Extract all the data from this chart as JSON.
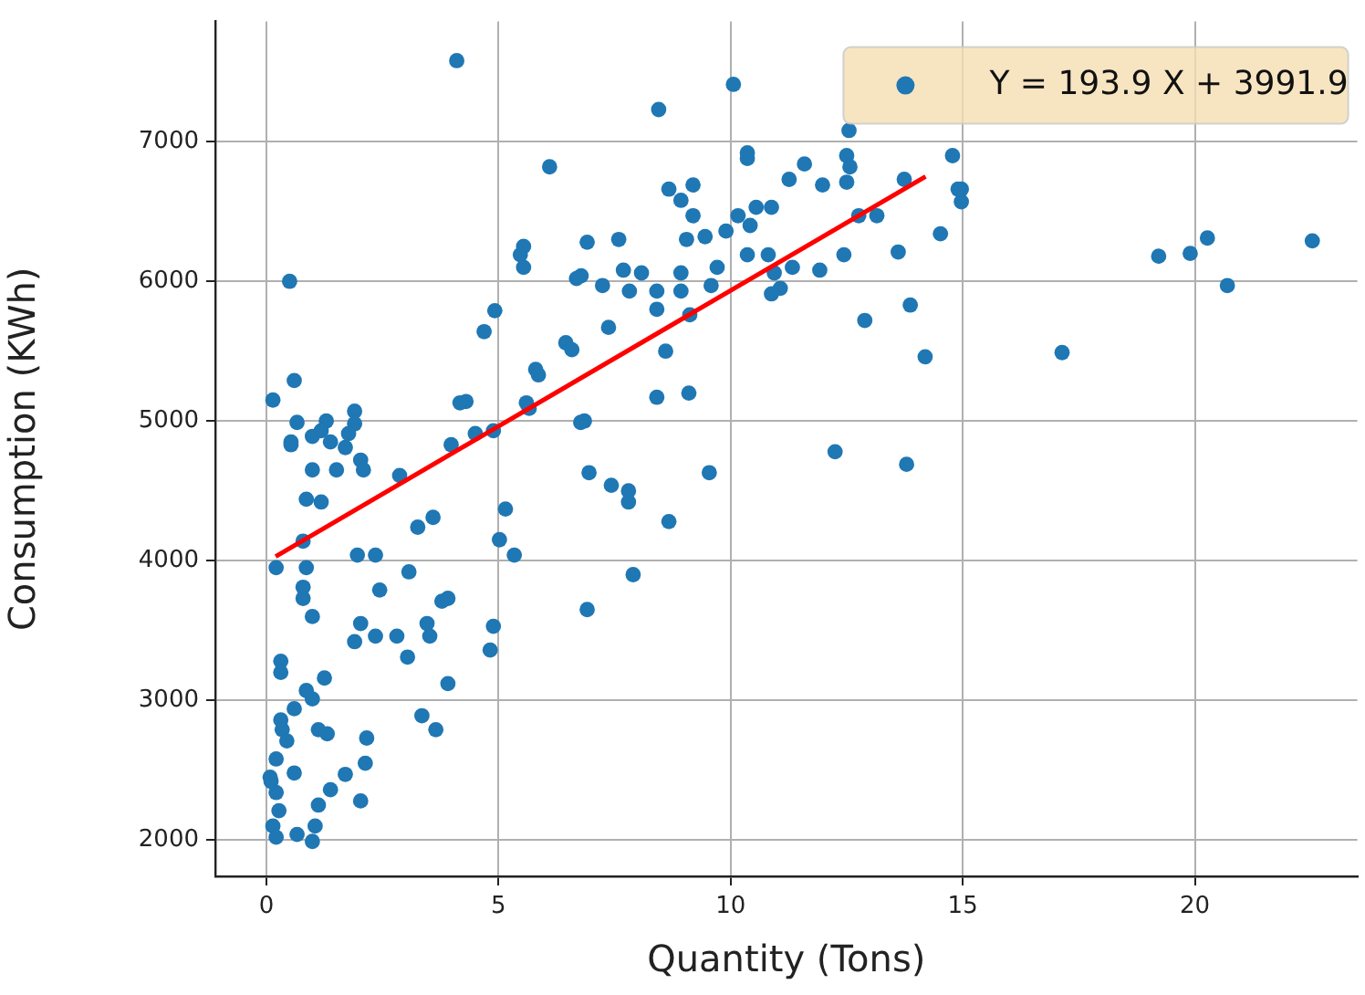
{
  "chart_data": {
    "type": "scatter",
    "xlabel": "Quantity (Tons)",
    "ylabel": "Consumption (KWh)",
    "xlim": [
      -1.1,
      23.5
    ],
    "ylim": [
      1740,
      7860
    ],
    "xticks": [
      0,
      5,
      10,
      15,
      20
    ],
    "yticks": [
      2000,
      3000,
      4000,
      5000,
      6000,
      7000
    ],
    "grid": true,
    "legend": "top right",
    "series": [
      {
        "name": "Y = 193.9 X + 3991.9",
        "marker": "circle",
        "color": "#1f77b4",
        "x": [
          4.1,
          0.5,
          6.1,
          8.45,
          10.06,
          12.55,
          17.14,
          19.22,
          19.9,
          20.27,
          20.7,
          22.53,
          14.97,
          14.97,
          12.25,
          13.79,
          7.9,
          6.91,
          6.95,
          7.43,
          7.8,
          7.8,
          8.67,
          9.54,
          6.91,
          7.59,
          6.78,
          7.24,
          7.69,
          7.82,
          8.08,
          8.41,
          8.41,
          8.93,
          8.93,
          9.12,
          9.71,
          9.58,
          8.6,
          7.37,
          8.41,
          9.1,
          6.85,
          8.67,
          9.19,
          8.93,
          9.19,
          9.05,
          9.45,
          9.9,
          10.16,
          10.42,
          10.55,
          10.88,
          10.36,
          10.36,
          11.26,
          11.59,
          11.98,
          12.5,
          12.5,
          12.57,
          12.76,
          13.15,
          10.36,
          10.81,
          10.94,
          11.07,
          10.88,
          11.33,
          11.92,
          12.44,
          12.89,
          13.61,
          13.87,
          14.19,
          13.74,
          14.52,
          14.78,
          14.9,
          5.54,
          5.47,
          5.54,
          6.68,
          4.92,
          4.69,
          6.45,
          6.58,
          5.8,
          5.86,
          6.77,
          5.6,
          5.66,
          4.3,
          4.17,
          4.89,
          4.5,
          3.98,
          0.6,
          0.14,
          0.66,
          1.29,
          1.9,
          1.9,
          0.53,
          0.53,
          0.99,
          1.38,
          1.7,
          2.03,
          1.51,
          0.99,
          2.09,
          1.18,
          1.77,
          2.87,
          5.15,
          0.86,
          1.18,
          3.59,
          3.26,
          0.79,
          1.96,
          2.35,
          5.02,
          5.34,
          0.21,
          0.86,
          3.07,
          0.79,
          2.44,
          0.79,
          0.99,
          2.03,
          2.35,
          2.81,
          1.9,
          3.46,
          3.52,
          3.78,
          3.91,
          4.89,
          4.82,
          3.04,
          0.31,
          0.31,
          1.25,
          0.86,
          0.99,
          3.91,
          0.6,
          0.31,
          0.34,
          0.44,
          1.12,
          1.31,
          3.35,
          3.65,
          2.16,
          0.21,
          0.08,
          0.6,
          2.13,
          1.7,
          1.38,
          1.12,
          2.03,
          0.21,
          0.27,
          0.14,
          0.21,
          0.66,
          0.99,
          1.05,
          0.1
        ],
        "values": [
          7580,
          6000,
          6820,
          7230,
          7410,
          7080,
          5490,
          6180,
          6200,
          6310,
          5970,
          6290,
          6660,
          6570,
          4780,
          4690,
          3900,
          3650,
          4630,
          4540,
          4500,
          4420,
          4280,
          4630,
          6280,
          6300,
          6040,
          5970,
          6080,
          5930,
          6060,
          5930,
          5800,
          6060,
          5930,
          5760,
          6100,
          5970,
          5500,
          5670,
          5170,
          5200,
          5000,
          6660,
          6690,
          6580,
          6470,
          6300,
          6320,
          6360,
          6470,
          6400,
          6530,
          6530,
          6920,
          6880,
          6730,
          6840,
          6690,
          6710,
          6900,
          6820,
          6470,
          6470,
          6190,
          6190,
          6060,
          5950,
          5910,
          6100,
          6080,
          6190,
          5720,
          6210,
          5830,
          5460,
          6730,
          6340,
          6900,
          6660,
          6250,
          6190,
          6100,
          6020,
          5790,
          5640,
          5560,
          5510,
          5370,
          5330,
          4990,
          5130,
          5090,
          5140,
          5130,
          4930,
          4910,
          4830,
          5290,
          5150,
          4990,
          5000,
          5070,
          4980,
          4850,
          4830,
          4890,
          4850,
          4810,
          4720,
          4650,
          4650,
          4650,
          4930,
          4910,
          4610,
          4370,
          4440,
          4420,
          4310,
          4240,
          4140,
          4040,
          4040,
          4150,
          4040,
          3950,
          3950,
          3920,
          3810,
          3790,
          3730,
          3600,
          3550,
          3460,
          3460,
          3420,
          3550,
          3460,
          3710,
          3730,
          3530,
          3360,
          3310,
          3280,
          3200,
          3160,
          3070,
          3010,
          3120,
          2940,
          2860,
          2790,
          2710,
          2790,
          2760,
          2890,
          2790,
          2730,
          2580,
          2450,
          2480,
          2550,
          2470,
          2360,
          2250,
          2280,
          2340,
          2210,
          2100,
          2020,
          2040,
          1990,
          2100,
          2420
        ]
      },
      {
        "type": "line",
        "marker": "none",
        "color": "#ff0000",
        "x": [
          0.2,
          14.2
        ],
        "values": [
          4030,
          6750
        ]
      }
    ]
  }
}
